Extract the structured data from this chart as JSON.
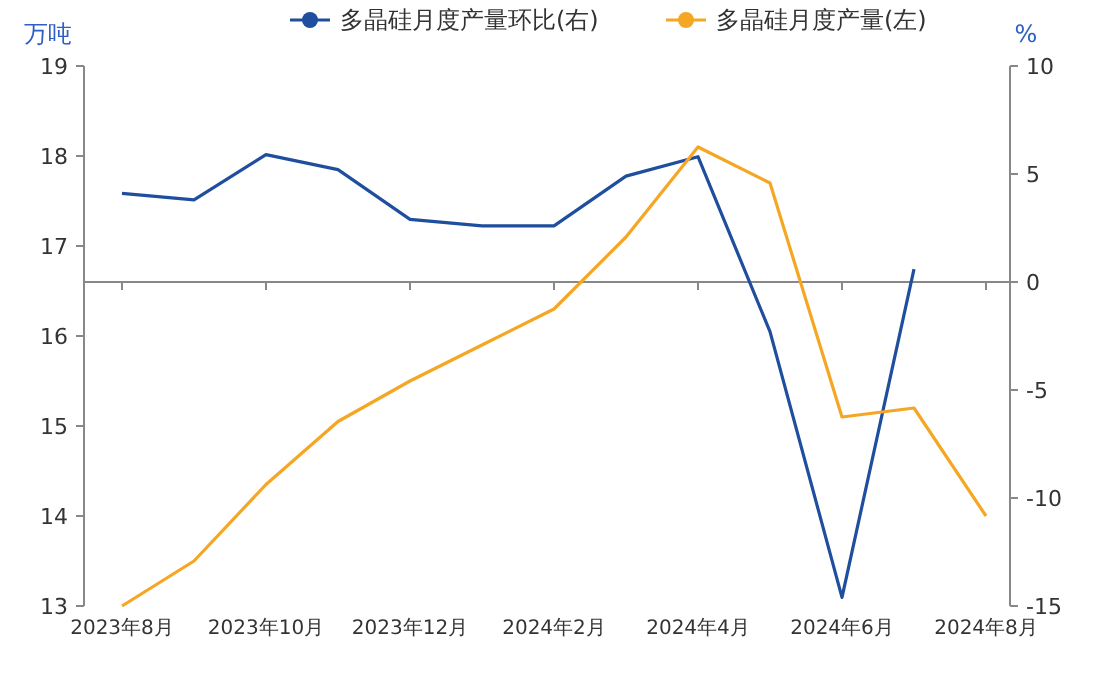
{
  "chart_data": {
    "type": "line",
    "ylabel": "万吨",
    "y2label": "%",
    "categories": [
      "2023年8月",
      null,
      "2023年10月",
      null,
      "2023年12月",
      null,
      "2024年2月",
      null,
      "2024年4月",
      null,
      "2024年6月",
      null,
      "2024年8月"
    ],
    "series": [
      {
        "name": "多晶硅月度产量环比(右)",
        "color": "#1f4e9e",
        "axis": "y2",
        "values": [
          4.1,
          3.8,
          5.9,
          5.2,
          2.9,
          2.6,
          2.6,
          4.9,
          5.8,
          -2.3,
          -14.6,
          0.6,
          null
        ]
      },
      {
        "name": "多晶硅月度产量(左)",
        "color": "#f5a623",
        "values": [
          13.0,
          13.5,
          14.35,
          15.05,
          15.5,
          15.9,
          16.3,
          17.1,
          18.1,
          17.7,
          15.1,
          15.2,
          14.0
        ]
      }
    ],
    "ylim": [
      13,
      19
    ],
    "yticks": [
      13,
      14,
      15,
      16,
      17,
      18,
      19
    ],
    "y2lim": [
      -15,
      10
    ],
    "y2ticks": [
      -15,
      -10,
      -5,
      0,
      5,
      10
    ],
    "legend": "top"
  }
}
